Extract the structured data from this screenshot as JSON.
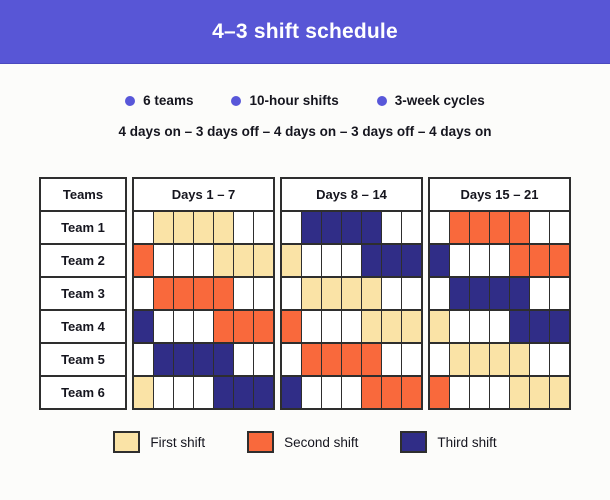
{
  "header": {
    "title": "4–3 shift schedule"
  },
  "facts": [
    {
      "label": "6 teams"
    },
    {
      "label": "10-hour shifts"
    },
    {
      "label": "3-week cycles"
    }
  ],
  "pattern_line": "4 days on – 3 days off – 4 days on – 3 days off – 4 days on",
  "colors": {
    "banner": "#5856D6",
    "bullet": "#5857D9",
    "off": "#FFFFFF",
    "first_shift": "#FAE3A6",
    "second_shift": "#F9693C",
    "third_shift": "#302D87",
    "grid_border": "#2E2E2E"
  },
  "chart_data": {
    "type": "heatmap",
    "title": "4–3 shift schedule",
    "teams_header": "Teams",
    "block_headers": [
      "Days 1 – 7",
      "Days 8 – 14",
      "Days 15 – 21"
    ],
    "days_per_block": 7,
    "total_days": 21,
    "value_meaning": {
      "0": "off",
      "1": "first shift",
      "2": "second shift",
      "3": "third shift"
    },
    "rows": [
      {
        "name": "Team 1",
        "days": [
          0,
          1,
          1,
          1,
          1,
          0,
          0,
          0,
          3,
          3,
          3,
          3,
          0,
          0,
          0,
          2,
          2,
          2,
          2,
          0,
          0
        ]
      },
      {
        "name": "Team 2",
        "days": [
          2,
          0,
          0,
          0,
          1,
          1,
          1,
          1,
          0,
          0,
          0,
          3,
          3,
          3,
          3,
          0,
          0,
          0,
          2,
          2,
          2
        ]
      },
      {
        "name": "Team 3",
        "days": [
          0,
          2,
          2,
          2,
          2,
          0,
          0,
          0,
          1,
          1,
          1,
          1,
          0,
          0,
          0,
          3,
          3,
          3,
          3,
          0,
          0
        ]
      },
      {
        "name": "Team 4",
        "days": [
          3,
          0,
          0,
          0,
          2,
          2,
          2,
          2,
          0,
          0,
          0,
          1,
          1,
          1,
          1,
          0,
          0,
          0,
          3,
          3,
          3
        ]
      },
      {
        "name": "Team 5",
        "days": [
          0,
          3,
          3,
          3,
          3,
          0,
          0,
          0,
          2,
          2,
          2,
          2,
          0,
          0,
          0,
          1,
          1,
          1,
          1,
          0,
          0
        ]
      },
      {
        "name": "Team 6",
        "days": [
          1,
          0,
          0,
          0,
          3,
          3,
          3,
          3,
          0,
          0,
          0,
          2,
          2,
          2,
          2,
          0,
          0,
          0,
          1,
          1,
          1
        ]
      }
    ],
    "legend_position": "bottom"
  },
  "legend": [
    {
      "code": 1,
      "label": "First shift",
      "color": "#FAE3A6"
    },
    {
      "code": 2,
      "label": "Second shift",
      "color": "#F9693C"
    },
    {
      "code": 3,
      "label": "Third shift",
      "color": "#302D87"
    }
  ]
}
